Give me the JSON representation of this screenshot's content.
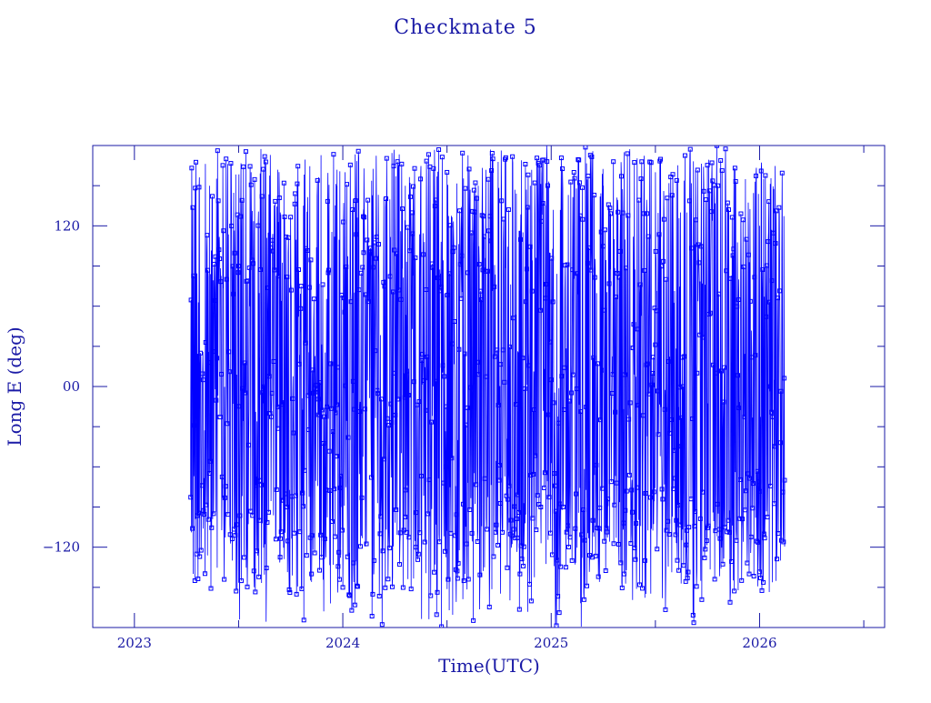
{
  "chart_data": {
    "type": "scatter",
    "title": "Checkmate 5",
    "xlabel": "Time(UTC)",
    "ylabel": "Long E (deg)",
    "x_axis": {
      "min": 2022.8,
      "max": 2026.6,
      "ticks": [
        2023,
        2024,
        2025,
        2026
      ],
      "tick_labels": [
        "2023",
        "2024",
        "2025",
        "2026"
      ]
    },
    "y_axis": {
      "min": -180,
      "max": 180,
      "ticks": [
        -120,
        0,
        120
      ],
      "tick_labels": [
        "−120",
        "00",
        "120"
      ]
    },
    "grid": false,
    "colors": {
      "axes": "#1a1aa6",
      "series": "#0000ff",
      "text": "#1a1aa6"
    },
    "series": [
      {
        "marker": "square",
        "connected": true,
        "x_range": [
          2023.27,
          2026.12
        ],
        "y_range": [
          -180,
          180
        ],
        "clusters_y": [
          -130,
          -90,
          0,
          90,
          150
        ],
        "points": [
          [
            2023.27,
            -30
          ],
          [
            2023.28,
            105
          ],
          [
            2023.29,
            -145
          ],
          [
            2023.31,
            80
          ],
          [
            2023.33,
            5
          ],
          [
            2023.36,
            150
          ],
          [
            2023.38,
            -95
          ],
          [
            2023.41,
            85
          ],
          [
            2023.44,
            170
          ],
          [
            2023.47,
            -130
          ],
          [
            2023.5,
            90
          ],
          [
            2023.53,
            10
          ],
          [
            2023.56,
            160
          ],
          [
            2023.6,
            -100
          ],
          [
            2023.63,
            80
          ],
          [
            2023.66,
            -5
          ],
          [
            2023.7,
            130
          ],
          [
            2023.73,
            -90
          ],
          [
            2023.77,
            120
          ],
          [
            2023.8,
            75
          ],
          [
            2023.85,
            -140
          ],
          [
            2023.89,
            -95
          ],
          [
            2023.93,
            85
          ],
          [
            2023.97,
            150
          ],
          [
            2024.0,
            -150
          ],
          [
            2024.05,
            140
          ],
          [
            2024.1,
            100
          ],
          [
            2024.15,
            -130
          ],
          [
            2024.2,
            80
          ],
          [
            2024.25,
            10
          ],
          [
            2024.3,
            150
          ],
          [
            2024.35,
            -120
          ],
          [
            2024.4,
            90
          ],
          [
            2024.45,
            -85
          ],
          [
            2024.5,
            160
          ],
          [
            2024.55,
            -130
          ],
          [
            2024.6,
            85
          ],
          [
            2024.65,
            150
          ],
          [
            2024.7,
            40
          ],
          [
            2024.75,
            -70
          ],
          [
            2024.8,
            10
          ],
          [
            2024.85,
            -140
          ],
          [
            2024.9,
            150
          ],
          [
            2024.95,
            -90
          ],
          [
            2025.0,
            5
          ],
          [
            2025.05,
            130
          ],
          [
            2025.1,
            -130
          ],
          [
            2025.15,
            90
          ],
          [
            2025.2,
            -100
          ],
          [
            2025.25,
            150
          ],
          [
            2025.3,
            0
          ],
          [
            2025.35,
            -140
          ],
          [
            2025.4,
            100
          ],
          [
            2025.45,
            -130
          ],
          [
            2025.5,
            160
          ],
          [
            2025.55,
            80
          ],
          [
            2025.6,
            -100
          ],
          [
            2025.65,
            130
          ],
          [
            2025.7,
            10
          ],
          [
            2025.75,
            -90
          ],
          [
            2025.8,
            150
          ],
          [
            2025.85,
            -100
          ],
          [
            2025.9,
            80
          ],
          [
            2025.95,
            -140
          ],
          [
            2026.0,
            120
          ],
          [
            2026.05,
            0
          ],
          [
            2026.1,
            -130
          ],
          [
            2026.12,
            -70
          ]
        ]
      }
    ]
  }
}
